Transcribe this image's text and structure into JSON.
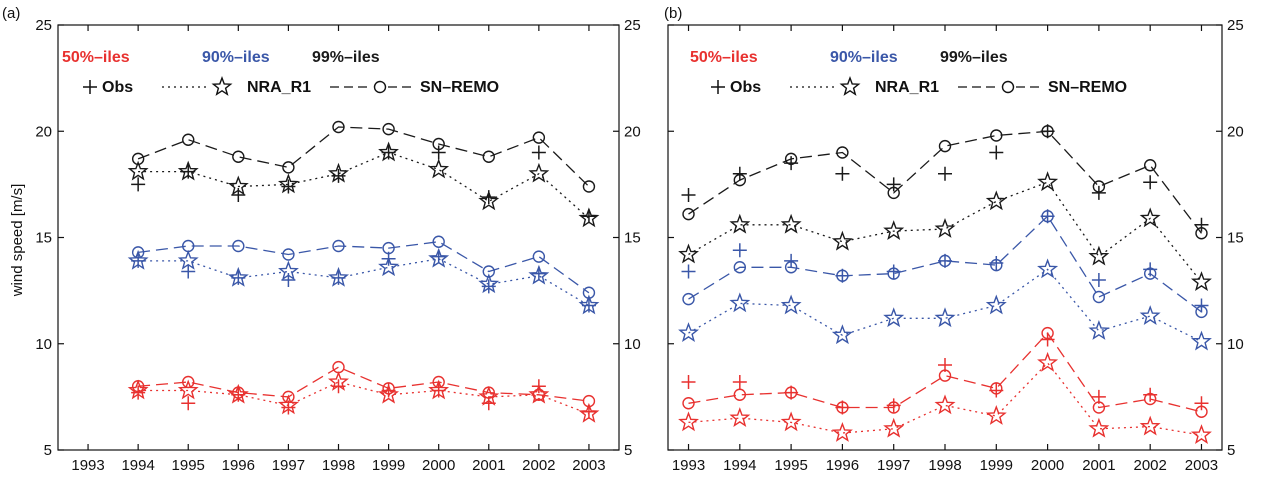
{
  "colors": {
    "p50": "#e8312f",
    "p90": "#3a57a8",
    "p99": "#1a1a1a"
  },
  "legend": {
    "percentile_labels": {
      "p50": "50%–iles",
      "p90": "90%–iles",
      "p99": "99%–iles"
    },
    "markers": {
      "obs": "Obs",
      "nra": "NRA_R1",
      "remo": "SN–REMO"
    }
  },
  "ylabel": "wind speed [m/s]",
  "chart_data": [
    {
      "type": "line",
      "panel_label": "(a)",
      "x": [
        1993,
        1994,
        1995,
        1996,
        1997,
        1998,
        1999,
        2000,
        2001,
        2002,
        2003
      ],
      "xlim": [
        1992.4,
        2003.6
      ],
      "ylim": [
        5,
        25
      ],
      "yticks": [
        5,
        10,
        15,
        20,
        25
      ],
      "series": [
        {
          "group": "p99",
          "kind": "obs",
          "values": [
            null,
            17.5,
            18.1,
            17.0,
            17.4,
            17.9,
            19.0,
            19.0,
            16.9,
            19.0,
            16.0
          ]
        },
        {
          "group": "p99",
          "kind": "nra",
          "values": [
            null,
            18.1,
            18.1,
            17.4,
            17.5,
            18.0,
            19.0,
            18.2,
            16.7,
            18.0,
            15.9
          ]
        },
        {
          "group": "p99",
          "kind": "remo",
          "values": [
            null,
            18.7,
            19.6,
            18.8,
            18.3,
            20.2,
            20.1,
            19.4,
            18.8,
            19.7,
            17.4
          ]
        },
        {
          "group": "p90",
          "kind": "obs",
          "values": [
            null,
            13.9,
            13.4,
            13.1,
            13.0,
            13.1,
            14.0,
            14.1,
            12.7,
            13.3,
            11.8
          ]
        },
        {
          "group": "p90",
          "kind": "nra",
          "values": [
            null,
            13.9,
            13.9,
            13.1,
            13.4,
            13.1,
            13.6,
            14.0,
            12.8,
            13.2,
            11.8
          ]
        },
        {
          "group": "p90",
          "kind": "remo",
          "values": [
            null,
            14.3,
            14.6,
            14.6,
            14.2,
            14.6,
            14.5,
            14.8,
            13.4,
            14.1,
            12.4
          ]
        },
        {
          "group": "p50",
          "kind": "obs",
          "values": [
            null,
            7.7,
            7.2,
            7.6,
            7.0,
            8.0,
            7.8,
            7.8,
            7.2,
            8.0,
            6.8
          ]
        },
        {
          "group": "p50",
          "kind": "nra",
          "values": [
            null,
            7.8,
            7.8,
            7.6,
            7.1,
            8.2,
            7.6,
            7.8,
            7.5,
            7.6,
            6.7
          ]
        },
        {
          "group": "p50",
          "kind": "remo",
          "values": [
            null,
            8.0,
            8.2,
            7.7,
            7.5,
            8.9,
            7.9,
            8.2,
            7.7,
            7.6,
            7.3
          ]
        }
      ]
    },
    {
      "type": "line",
      "panel_label": "(b)",
      "x": [
        1993,
        1994,
        1995,
        1996,
        1997,
        1998,
        1999,
        2000,
        2001,
        2002,
        2003
      ],
      "xlim": [
        1992.6,
        2003.4
      ],
      "ylim": [
        5,
        25
      ],
      "yticks": [
        5,
        10,
        15,
        20,
        25
      ],
      "series": [
        {
          "group": "p99",
          "kind": "obs",
          "values": [
            17.0,
            18.0,
            18.5,
            18.0,
            17.5,
            18.0,
            19.0,
            20.0,
            17.1,
            17.6,
            15.6
          ]
        },
        {
          "group": "p99",
          "kind": "nra",
          "values": [
            14.2,
            15.6,
            15.6,
            14.8,
            15.3,
            15.4,
            16.7,
            17.6,
            14.1,
            15.9,
            12.9
          ]
        },
        {
          "group": "p99",
          "kind": "remo",
          "values": [
            16.1,
            17.7,
            18.7,
            19.0,
            17.1,
            19.3,
            19.8,
            20.0,
            17.4,
            18.4,
            15.2
          ]
        },
        {
          "group": "p90",
          "kind": "obs",
          "values": [
            13.4,
            14.4,
            13.9,
            13.2,
            13.4,
            13.9,
            13.8,
            16.0,
            13.0,
            13.5,
            11.8
          ]
        },
        {
          "group": "p90",
          "kind": "nra",
          "values": [
            10.5,
            11.9,
            11.8,
            10.4,
            11.2,
            11.2,
            11.8,
            13.5,
            10.6,
            11.3,
            10.1
          ]
        },
        {
          "group": "p90",
          "kind": "remo",
          "values": [
            12.1,
            13.6,
            13.6,
            13.2,
            13.3,
            13.9,
            13.7,
            16.0,
            12.2,
            13.3,
            11.5
          ]
        },
        {
          "group": "p50",
          "kind": "obs",
          "values": [
            8.2,
            8.2,
            7.7,
            7.0,
            7.1,
            9.0,
            7.8,
            10.2,
            7.5,
            7.6,
            7.2
          ]
        },
        {
          "group": "p50",
          "kind": "nra",
          "values": [
            6.3,
            6.5,
            6.3,
            5.8,
            6.0,
            7.1,
            6.6,
            9.1,
            6.0,
            6.1,
            5.7
          ]
        },
        {
          "group": "p50",
          "kind": "remo",
          "values": [
            7.2,
            7.6,
            7.7,
            7.0,
            7.0,
            8.5,
            7.9,
            10.5,
            7.0,
            7.4,
            6.8
          ]
        }
      ]
    }
  ]
}
